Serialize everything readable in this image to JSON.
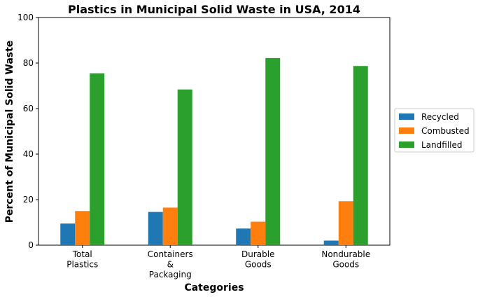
{
  "chart_data": {
    "type": "bar",
    "title": "Plastics in Municipal Solid Waste in USA, 2014",
    "xlabel": "Categories",
    "ylabel": "Percent of Municipal Solid Waste",
    "ylim": [
      0,
      100
    ],
    "yticks": [
      0,
      20,
      40,
      60,
      80,
      100
    ],
    "categories": [
      [
        "Total",
        "Plastics"
      ],
      [
        "Containers",
        "&",
        "Packaging"
      ],
      [
        "Durable",
        "Goods"
      ],
      [
        "Nondurable",
        "Goods"
      ]
    ],
    "series": [
      {
        "name": "Recycled",
        "color": "#1f77b4",
        "values": [
          9.5,
          14.6,
          7.3,
          2.0
        ]
      },
      {
        "name": "Combusted",
        "color": "#ff7f0e",
        "values": [
          15.0,
          16.5,
          10.3,
          19.3
        ]
      },
      {
        "name": "Landfilled",
        "color": "#2ca02c",
        "values": [
          75.5,
          68.4,
          82.2,
          78.7
        ]
      }
    ],
    "grid": false,
    "legend_position": "right"
  }
}
